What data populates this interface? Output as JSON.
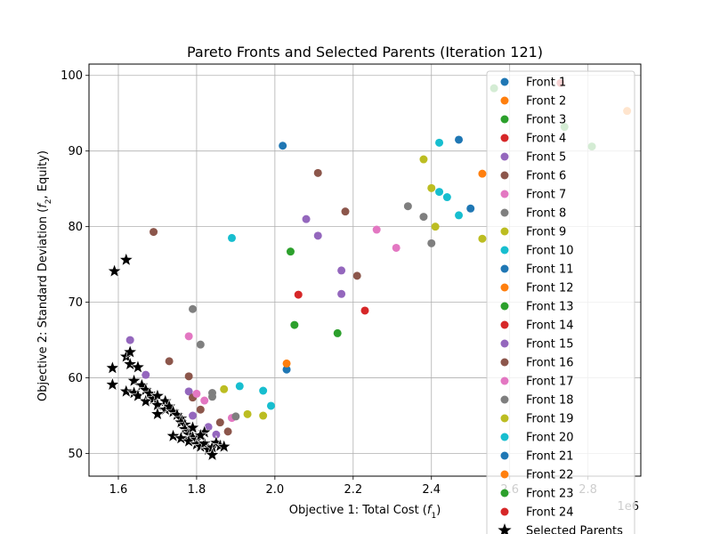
{
  "chart_data": {
    "type": "scatter",
    "title": "Pareto Fronts and Selected Parents (Iteration 121)",
    "xlabel": "Objective 1: Total Cost (",
    "xlabel_sym": "f",
    "xlabel_sub": "1",
    "xlabel_end": ")",
    "ylabel": "Objective 2: Standard Deviation (",
    "ylabel_sym": "f",
    "ylabel_sub": "2",
    "ylabel_end": ", Equity)",
    "x_offset_label": "1e6",
    "xlim": [
      1.525,
      2.935
    ],
    "ylim": [
      47.0,
      101.5
    ],
    "x_ticks": [
      1.6,
      1.8,
      2.0,
      2.2,
      2.4,
      2.6,
      2.8
    ],
    "x_tick_labels": [
      "1.6",
      "1.8",
      "2.0",
      "2.2",
      "2.4",
      "2.6",
      "2.8"
    ],
    "y_ticks": [
      50,
      60,
      70,
      80,
      90,
      100
    ],
    "y_tick_labels": [
      "50",
      "60",
      "70",
      "80",
      "90",
      "100"
    ],
    "grid": true,
    "legend_position": "right",
    "series": [
      {
        "name": "Front 1",
        "color": "#1f77b4",
        "points": [
          [
            2.47,
            91.5
          ],
          [
            2.5,
            82.4
          ],
          [
            2.03,
            61.1
          ],
          [
            2.02,
            90.7
          ]
        ]
      },
      {
        "name": "Front 2",
        "color": "#ff7f0e",
        "points": [
          [
            2.53,
            87.0
          ],
          [
            2.03,
            61.9
          ],
          [
            2.9,
            95.3
          ]
        ]
      },
      {
        "name": "Front 3",
        "color": "#2ca02c",
        "points": [
          [
            2.56,
            98.3
          ],
          [
            2.05,
            67.0
          ],
          [
            2.16,
            65.9
          ],
          [
            2.04,
            76.7
          ],
          [
            2.81,
            90.6
          ],
          [
            2.74,
            93.2
          ]
        ]
      },
      {
        "name": "Front 4",
        "color": "#d62728",
        "points": [
          [
            2.73,
            99.0
          ],
          [
            2.06,
            71.0
          ],
          [
            2.23,
            68.9
          ]
        ]
      },
      {
        "name": "Front 5",
        "color": "#9467bd",
        "points": [
          [
            2.08,
            81.0
          ],
          [
            2.11,
            78.8
          ],
          [
            2.17,
            74.2
          ],
          [
            2.17,
            71.1
          ],
          [
            1.63,
            65.0
          ],
          [
            1.78,
            58.2
          ],
          [
            1.67,
            60.4
          ],
          [
            1.79,
            55.0
          ],
          [
            1.83,
            53.5
          ],
          [
            1.85,
            52.5
          ]
        ]
      },
      {
        "name": "Front 6",
        "color": "#8c564b",
        "points": [
          [
            2.11,
            87.1
          ],
          [
            2.18,
            82.0
          ],
          [
            2.21,
            73.5
          ],
          [
            1.69,
            79.3
          ],
          [
            1.73,
            62.2
          ],
          [
            1.78,
            60.2
          ],
          [
            1.79,
            57.4
          ],
          [
            1.81,
            55.8
          ],
          [
            1.86,
            54.1
          ],
          [
            1.88,
            52.9
          ]
        ]
      },
      {
        "name": "Front 7",
        "color": "#e377c2",
        "points": [
          [
            2.26,
            79.6
          ],
          [
            2.31,
            77.2
          ],
          [
            1.78,
            65.5
          ],
          [
            1.8,
            57.9
          ],
          [
            1.82,
            57.0
          ],
          [
            1.89,
            54.7
          ]
        ]
      },
      {
        "name": "Front 8",
        "color": "#7f7f7f",
        "points": [
          [
            2.34,
            82.7
          ],
          [
            2.38,
            81.3
          ],
          [
            2.4,
            77.8
          ],
          [
            1.79,
            69.1
          ],
          [
            1.81,
            64.4
          ],
          [
            1.84,
            58.0
          ],
          [
            1.84,
            57.5
          ],
          [
            1.9,
            54.9
          ]
        ]
      },
      {
        "name": "Front 9",
        "color": "#bcbd22",
        "points": [
          [
            2.38,
            88.9
          ],
          [
            2.4,
            85.1
          ],
          [
            2.41,
            80.0
          ],
          [
            2.53,
            78.4
          ],
          [
            1.87,
            58.5
          ],
          [
            1.93,
            55.2
          ],
          [
            1.97,
            55.0
          ]
        ]
      },
      {
        "name": "Front 10",
        "color": "#17becf",
        "points": [
          [
            2.42,
            91.1
          ],
          [
            2.42,
            84.6
          ],
          [
            2.44,
            83.9
          ],
          [
            2.47,
            81.5
          ],
          [
            1.89,
            78.5
          ],
          [
            1.91,
            58.9
          ],
          [
            1.97,
            58.3
          ],
          [
            1.99,
            56.3
          ]
        ]
      },
      {
        "name": "Front 11",
        "color": "#1f77b4",
        "points": []
      },
      {
        "name": "Front 12",
        "color": "#ff7f0e",
        "points": []
      },
      {
        "name": "Front 13",
        "color": "#2ca02c",
        "points": []
      },
      {
        "name": "Front 14",
        "color": "#d62728",
        "points": []
      },
      {
        "name": "Front 15",
        "color": "#9467bd",
        "points": []
      },
      {
        "name": "Front 16",
        "color": "#8c564b",
        "points": []
      },
      {
        "name": "Front 17",
        "color": "#e377c2",
        "points": []
      },
      {
        "name": "Front 18",
        "color": "#7f7f7f",
        "points": []
      },
      {
        "name": "Front 19",
        "color": "#bcbd22",
        "points": []
      },
      {
        "name": "Front 20",
        "color": "#17becf",
        "points": []
      },
      {
        "name": "Front 21",
        "color": "#1f77b4",
        "points": []
      },
      {
        "name": "Front 22",
        "color": "#ff7f0e",
        "points": []
      },
      {
        "name": "Front 23",
        "color": "#2ca02c",
        "points": []
      },
      {
        "name": "Front 24",
        "color": "#d62728",
        "points": []
      }
    ],
    "selected_parents": {
      "name": "Selected Parents",
      "color": "#000000",
      "points": [
        [
          1.59,
          74.1
        ],
        [
          1.62,
          75.6
        ],
        [
          1.585,
          61.3
        ],
        [
          1.585,
          59.1
        ],
        [
          1.62,
          62.8
        ],
        [
          1.63,
          63.4
        ],
        [
          1.63,
          61.8
        ],
        [
          1.65,
          61.4
        ],
        [
          1.62,
          58.2
        ],
        [
          1.64,
          58.0
        ],
        [
          1.64,
          59.6
        ],
        [
          1.66,
          59.0
        ],
        [
          1.65,
          57.6
        ],
        [
          1.67,
          58.4
        ],
        [
          1.67,
          56.9
        ],
        [
          1.68,
          57.9
        ],
        [
          1.69,
          57.2
        ],
        [
          1.7,
          57.6
        ],
        [
          1.7,
          56.4
        ],
        [
          1.72,
          56.9
        ],
        [
          1.72,
          55.8
        ],
        [
          1.73,
          56.2
        ],
        [
          1.74,
          55.5
        ],
        [
          1.75,
          55.1
        ],
        [
          1.7,
          55.2
        ],
        [
          1.76,
          54.6
        ],
        [
          1.76,
          54.1
        ],
        [
          1.77,
          53.8
        ],
        [
          1.77,
          53.2
        ],
        [
          1.78,
          52.9
        ],
        [
          1.78,
          52.5
        ],
        [
          1.79,
          52.1
        ],
        [
          1.74,
          52.3
        ],
        [
          1.76,
          52.0
        ],
        [
          1.78,
          51.6
        ],
        [
          1.8,
          51.8
        ],
        [
          1.8,
          51.2
        ],
        [
          1.81,
          50.9
        ],
        [
          1.82,
          51.3
        ],
        [
          1.83,
          50.5
        ],
        [
          1.84,
          50.8
        ],
        [
          1.84,
          49.8
        ],
        [
          1.85,
          51.4
        ],
        [
          1.86,
          51.0
        ],
        [
          1.87,
          50.9
        ],
        [
          1.82,
          52.8
        ],
        [
          1.81,
          52.4
        ],
        [
          1.79,
          53.4
        ]
      ]
    }
  }
}
